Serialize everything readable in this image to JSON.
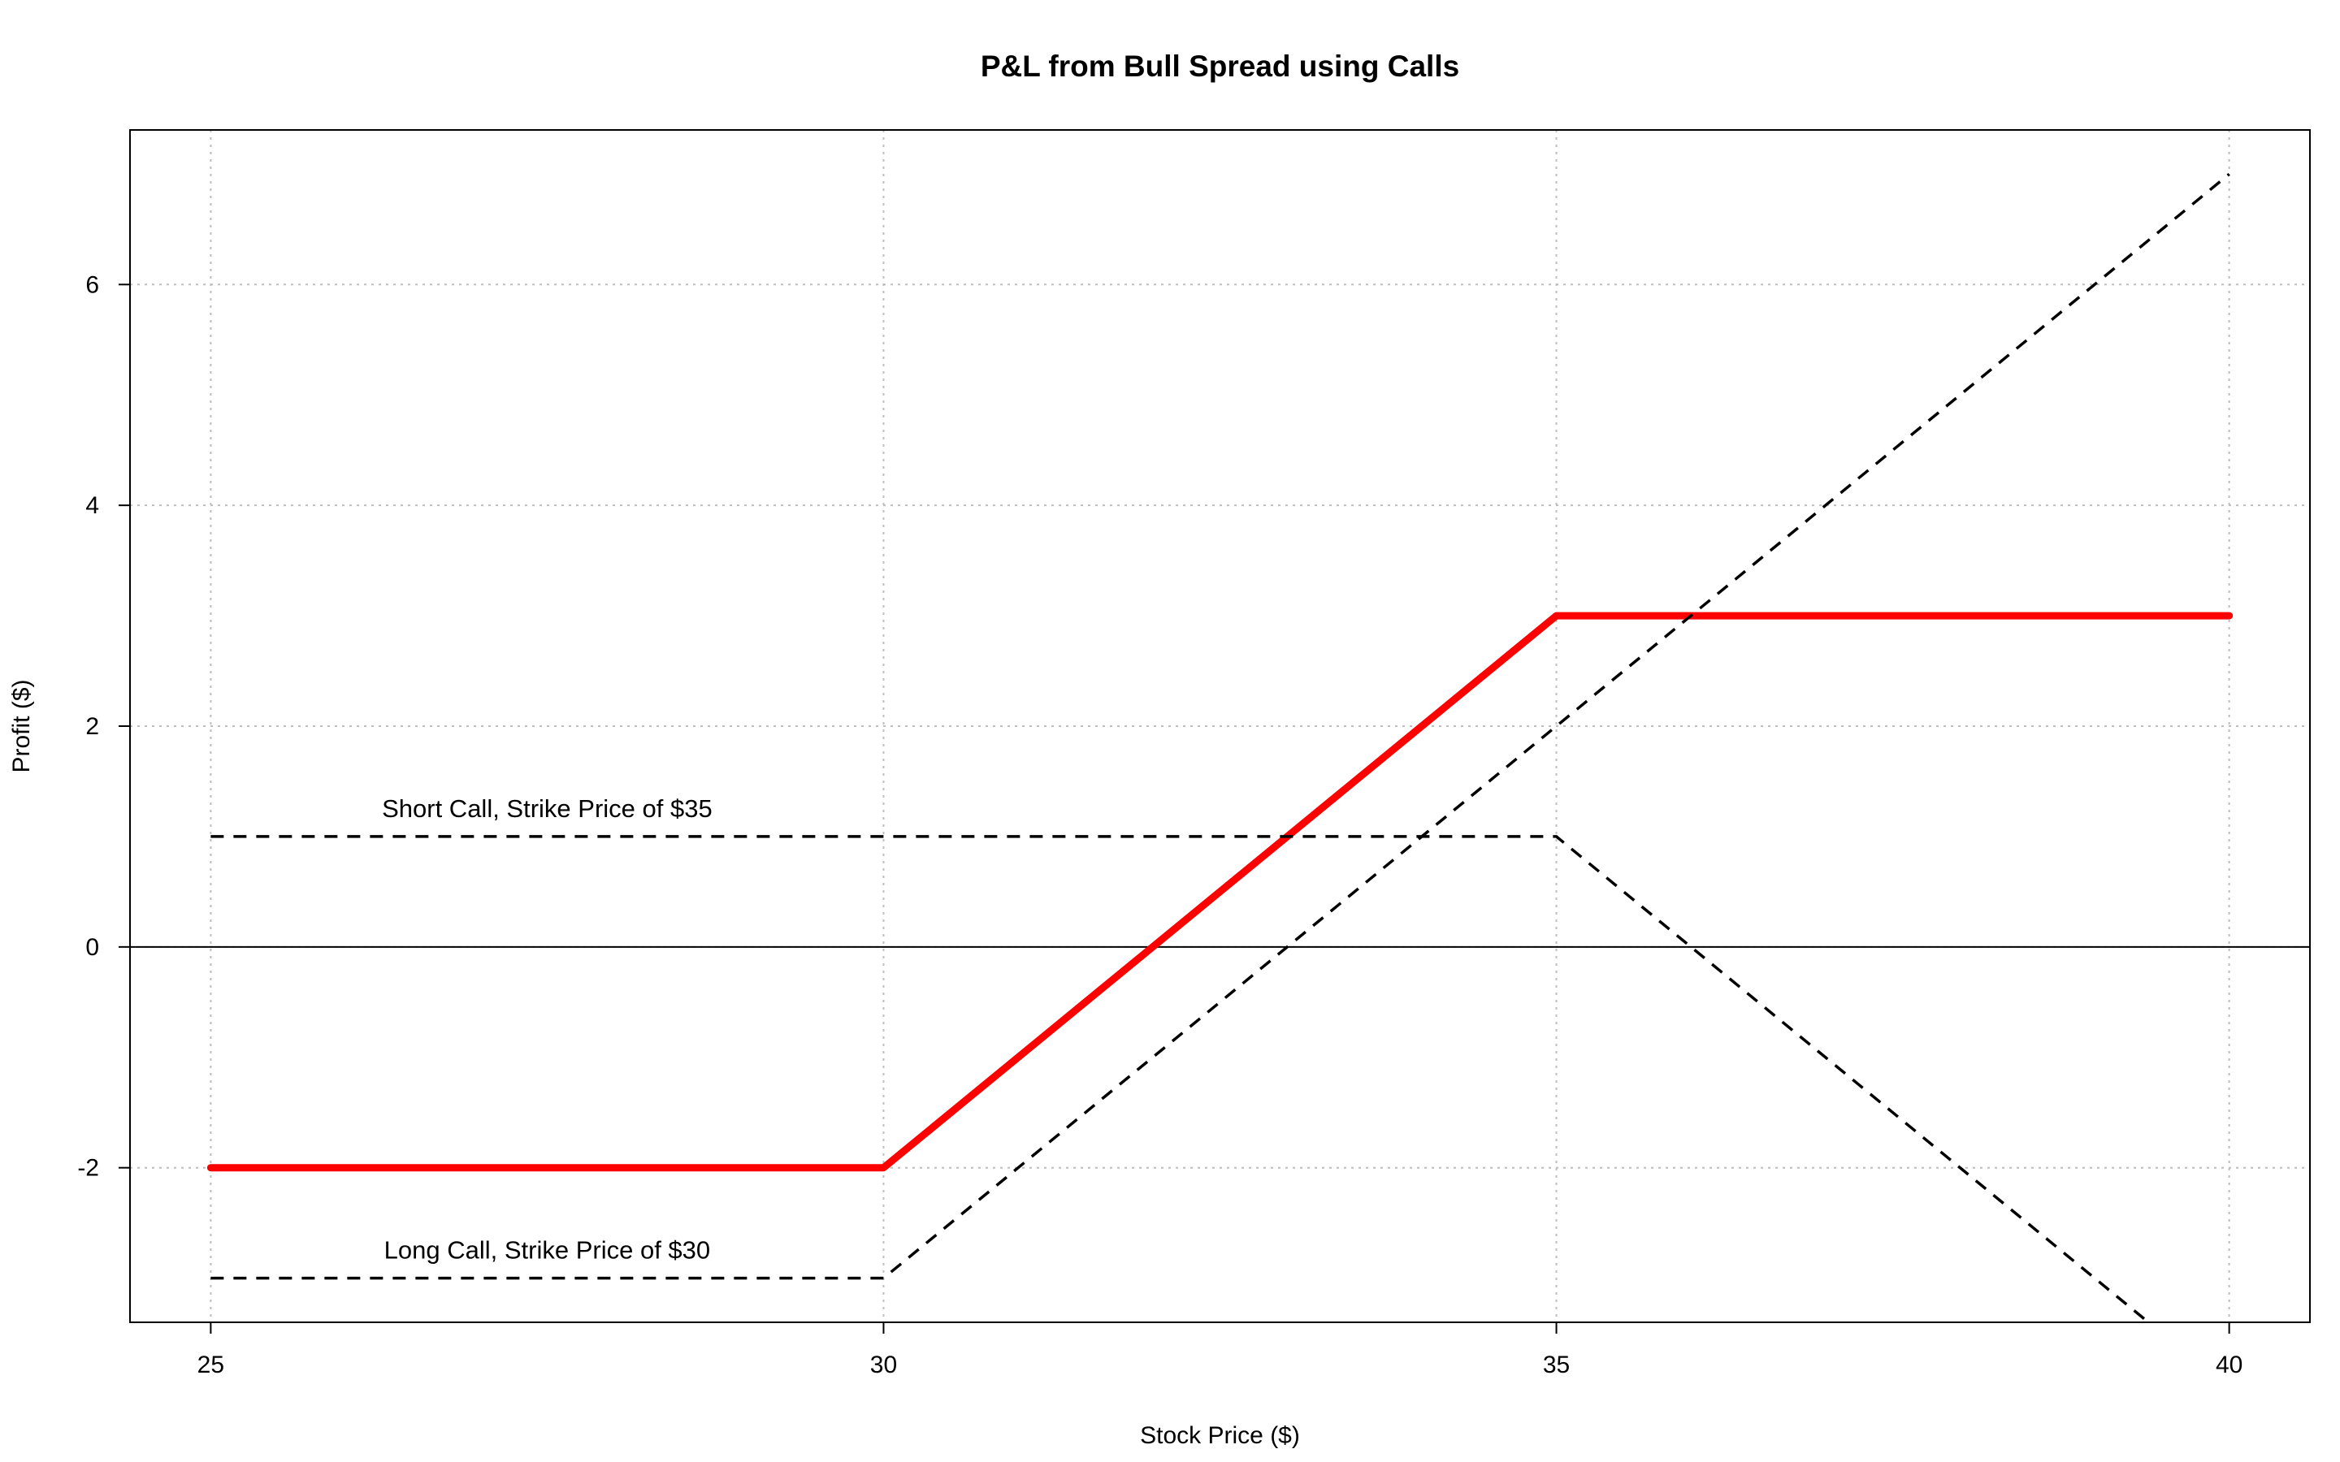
{
  "chart_data": {
    "type": "line",
    "title": "P&L from Bull Spread using Calls",
    "xlabel": "Stock Price ($)",
    "ylabel": "Profit ($)",
    "xlim": [
      24.4,
      40.6
    ],
    "ylim": [
      -3.4,
      7.4
    ],
    "xticks": [
      25,
      30,
      35,
      40
    ],
    "yticks": [
      -2,
      0,
      2,
      4,
      6
    ],
    "grid": true,
    "colors": {
      "spread": "#ff0000",
      "legs": "#000000",
      "grid": "#bebebe",
      "zero_line": "#000000"
    },
    "series": [
      {
        "style": "solid-red-thick",
        "x": [
          25,
          30,
          35,
          40
        ],
        "y": [
          -2,
          -2,
          3,
          3
        ]
      },
      {
        "style": "dashed-black",
        "x": [
          25,
          30,
          40
        ],
        "y": [
          -3,
          -3,
          7
        ]
      },
      {
        "style": "dashed-black",
        "x": [
          25,
          35,
          40
        ],
        "y": [
          1,
          1,
          -4
        ]
      }
    ],
    "reference_lines": [
      {
        "orientation": "horizontal",
        "y": 0
      }
    ],
    "annotations": [
      {
        "text": "Short Call, Strike Price of $35",
        "x": 27.5,
        "y": 1.25
      },
      {
        "text": "Long Call, Strike Price of $30",
        "x": 27.5,
        "y": -2.75
      }
    ]
  }
}
